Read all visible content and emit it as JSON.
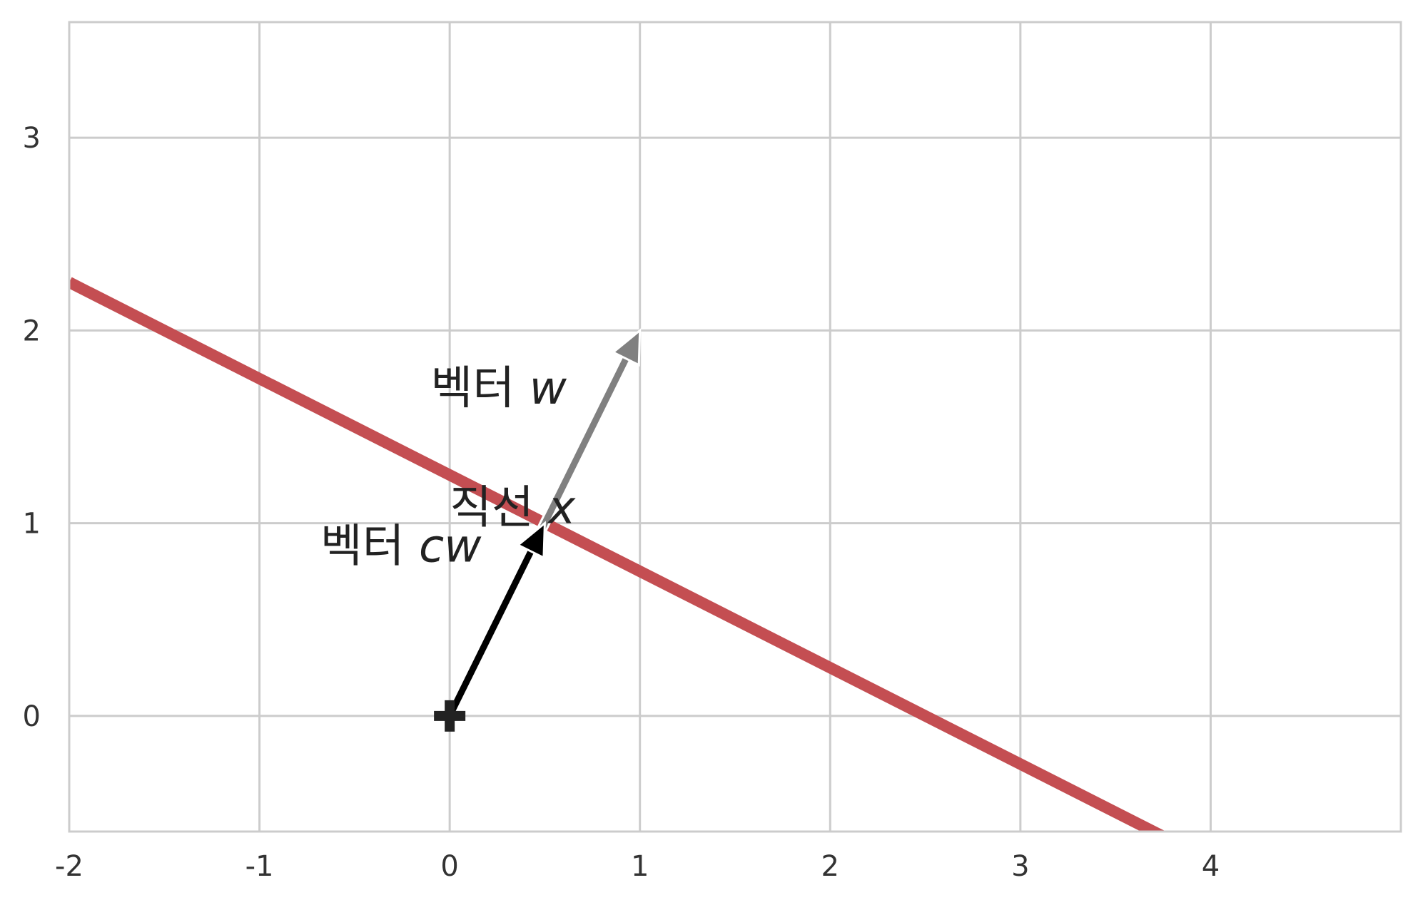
{
  "chart_data": {
    "type": "line",
    "title": "",
    "xlabel": "",
    "ylabel": "",
    "xlim": [
      -2,
      5
    ],
    "ylim": [
      -0.6,
      3.6
    ],
    "grid": true,
    "x_ticks": [
      "-2",
      "-1",
      "0",
      "1",
      "2",
      "3",
      "4"
    ],
    "y_ticks": [
      "0",
      "1",
      "2",
      "3"
    ],
    "line": {
      "x": [
        -2,
        3.75
      ],
      "y": [
        2.25,
        -0.625
      ]
    },
    "vector_w": {
      "from": [
        0,
        0
      ],
      "to": [
        1,
        2
      ]
    },
    "vector_cw": {
      "from": [
        0,
        0
      ],
      "to": [
        0.5,
        1
      ]
    },
    "origin_marker": [
      0,
      0
    ],
    "annotations": [
      {
        "text": "벡터 ",
        "math": "w",
        "x": -0.1,
        "y": 1.62
      },
      {
        "text": "직선 ",
        "math": "x",
        "x": 0.0,
        "y": 1.0
      },
      {
        "text": "벡터 ",
        "math": "cw",
        "x": -0.68,
        "y": 0.8
      }
    ],
    "colors": {
      "line": "#c44e52",
      "vector_w": "#808080",
      "vector_cw": "#000000",
      "grid": "#cccccc",
      "marker": "#222222"
    }
  }
}
